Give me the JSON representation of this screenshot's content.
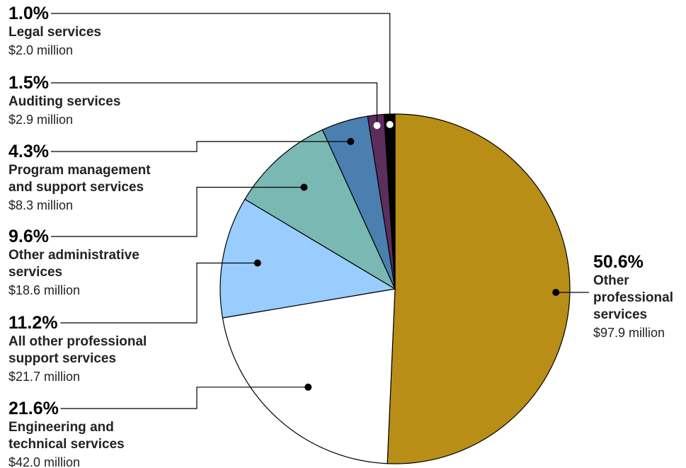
{
  "chart_data": {
    "type": "pie",
    "title": "",
    "slices": [
      {
        "label": "Other professional services",
        "label_lines": [
          "Other",
          "professional",
          "services"
        ],
        "percent": 50.6,
        "percent_label": "50.6%",
        "amount": "$97.9 million",
        "color": "#b88e17"
      },
      {
        "label": "Engineering and technical services",
        "label_lines": [
          "Engineering and",
          "technical services"
        ],
        "percent": 21.6,
        "percent_label": "21.6%",
        "amount": "$42.0 million",
        "color": "#ffffff"
      },
      {
        "label": "All other professional support services",
        "label_lines": [
          "All other professional",
          "support services"
        ],
        "percent": 11.2,
        "percent_label": "11.2%",
        "amount": "$21.7 million",
        "color": "#99ccff"
      },
      {
        "label": "Other administrative services",
        "label_lines": [
          "Other administrative",
          "services"
        ],
        "percent": 9.6,
        "percent_label": "9.6%",
        "amount": "$18.6 million",
        "color": "#7ab8b3"
      },
      {
        "label": "Program management and support services",
        "label_lines": [
          "Program management",
          "and support services"
        ],
        "percent": 4.3,
        "percent_label": "4.3%",
        "amount": "$8.3 million",
        "color": "#4a7fb0"
      },
      {
        "label": "Auditing services",
        "label_lines": [
          "Auditing services"
        ],
        "percent": 1.5,
        "percent_label": "1.5%",
        "amount": "$2.9 million",
        "color": "#5c2e5c"
      },
      {
        "label": "Legal services",
        "label_lines": [
          "Legal services"
        ],
        "percent": 1.0,
        "percent_label": "1.0%",
        "amount": "$2.0 million",
        "color": "#000000"
      }
    ]
  }
}
